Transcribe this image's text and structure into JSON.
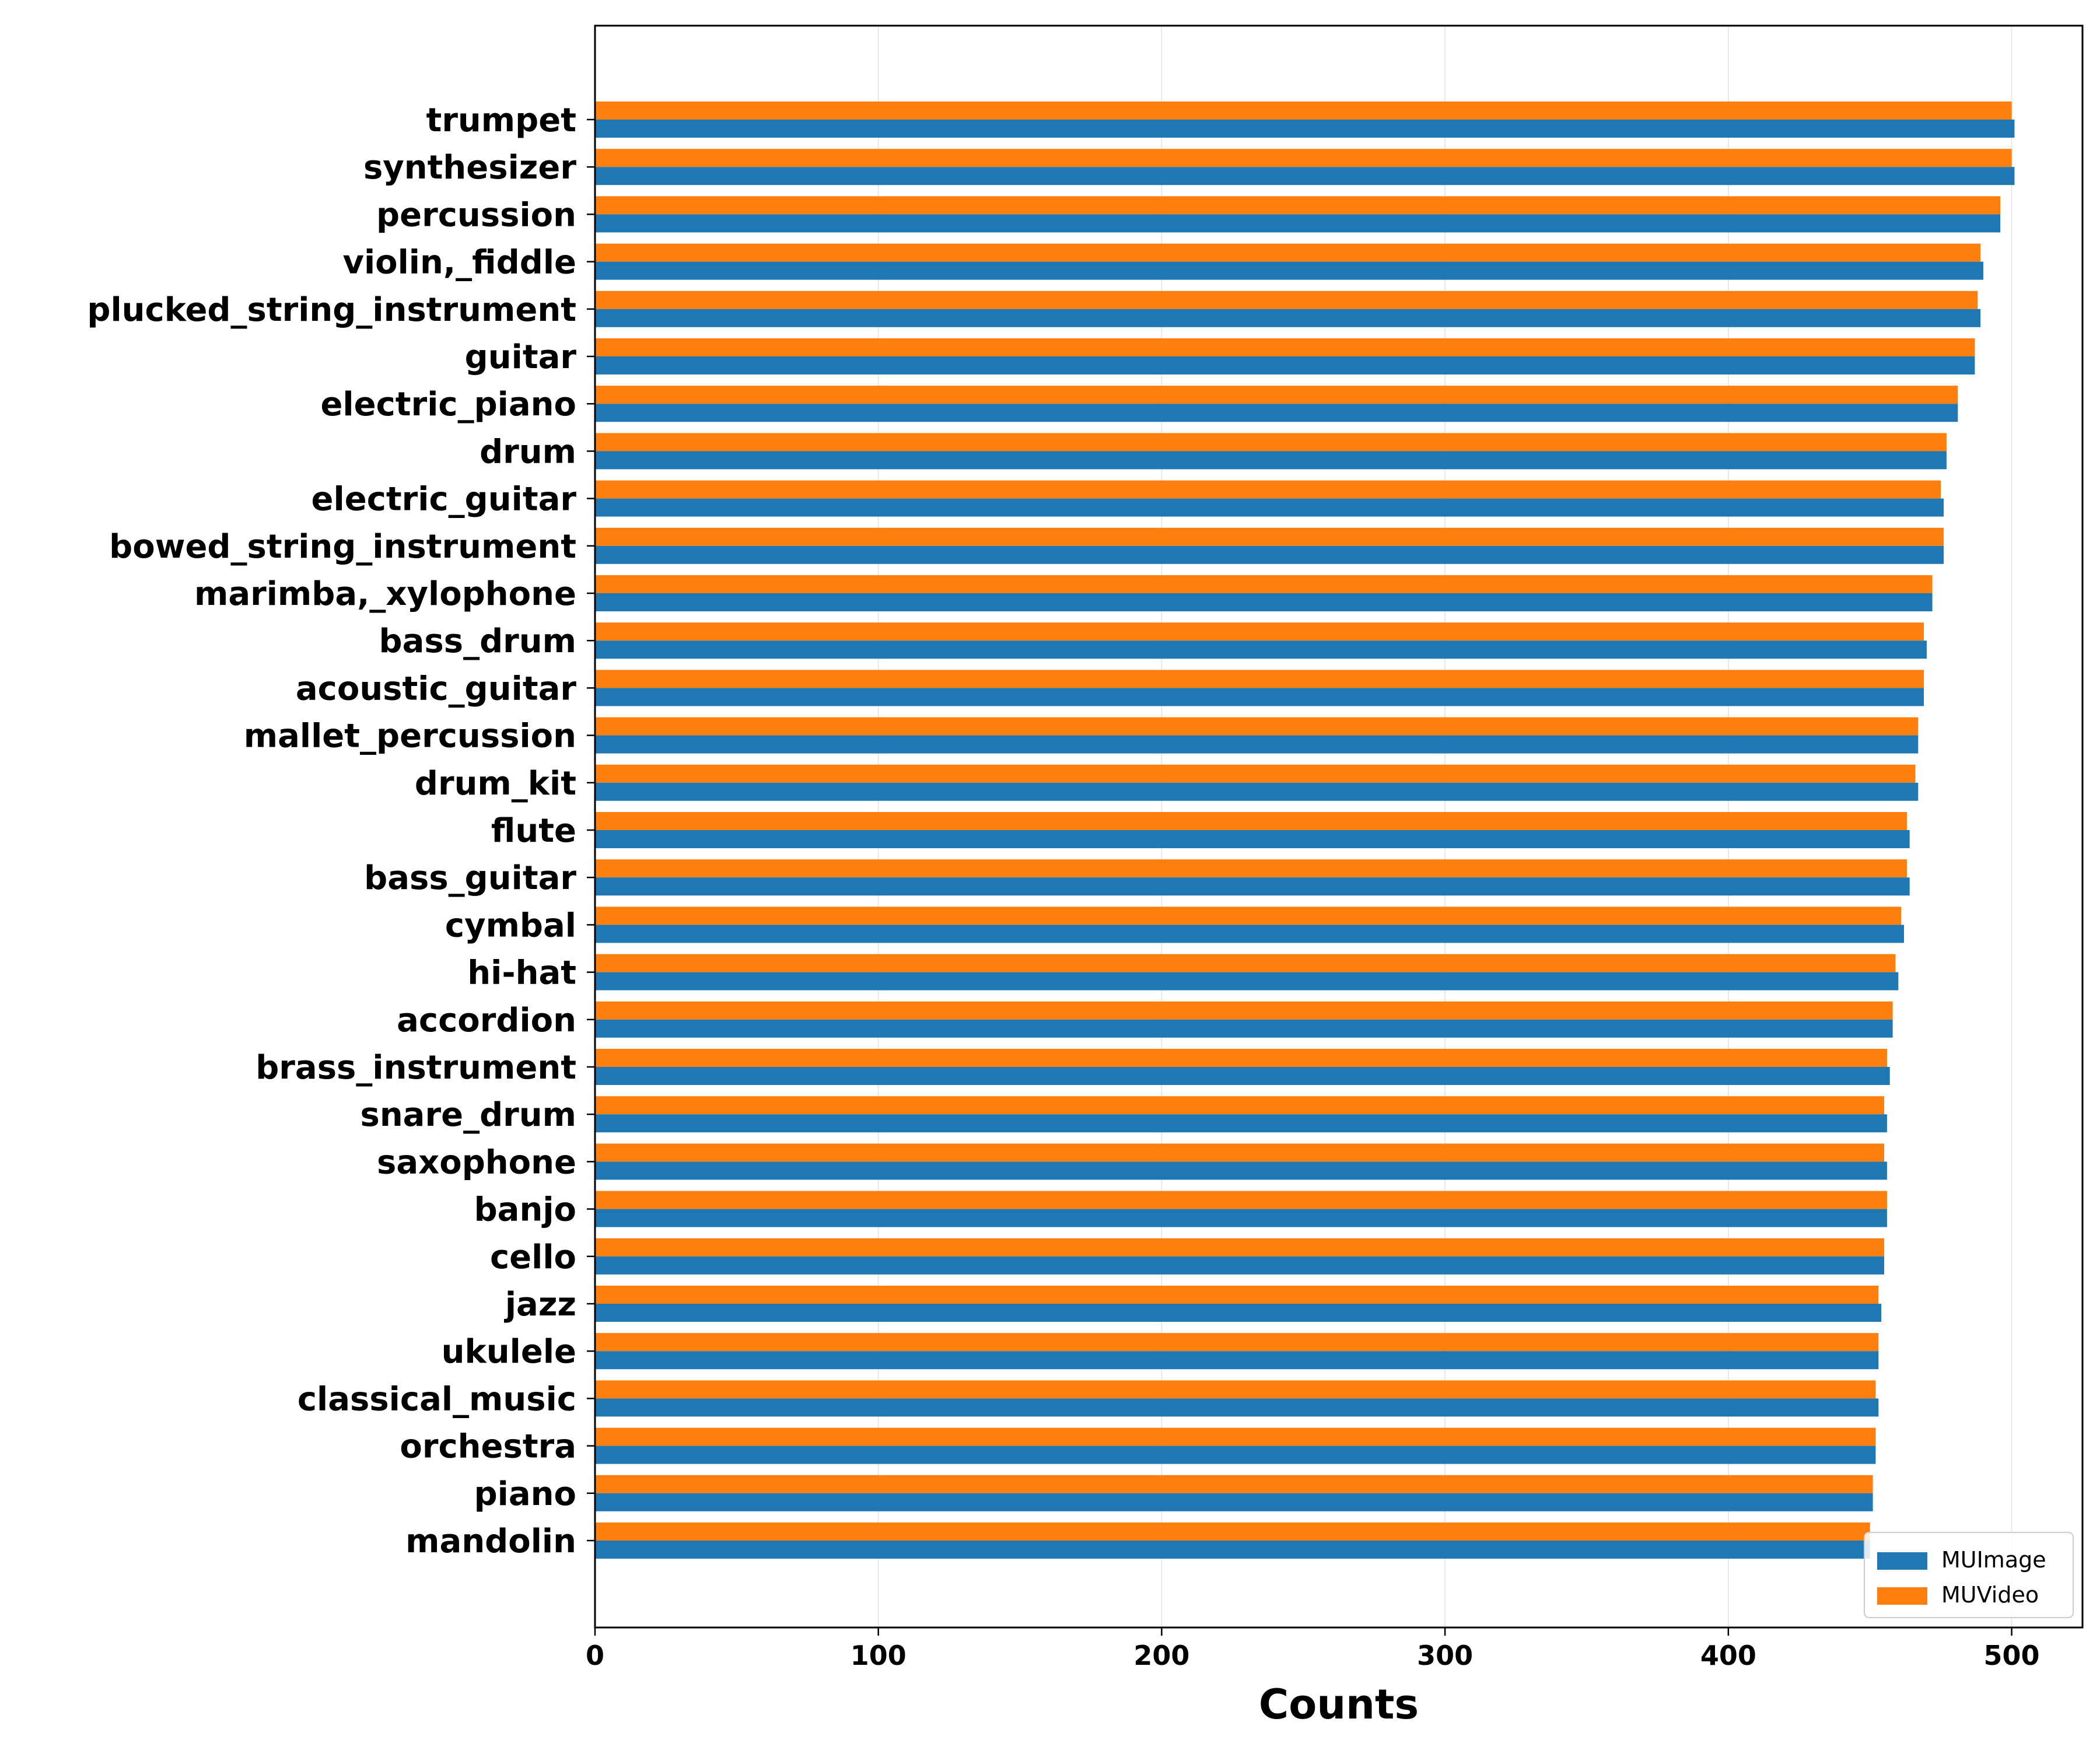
{
  "chart_data": {
    "type": "bar",
    "orientation": "horizontal",
    "title": "",
    "xlabel": "Counts",
    "ylabel": "",
    "xlim": [
      0,
      525
    ],
    "xticks": [
      0,
      100,
      200,
      300,
      400,
      500
    ],
    "grid": "vertical",
    "legend_position": "bottom-right",
    "categories": [
      "trumpet",
      "synthesizer",
      "percussion",
      "violin,_fiddle",
      "plucked_string_instrument",
      "guitar",
      "electric_piano",
      "drum",
      "electric_guitar",
      "bowed_string_instrument",
      "marimba,_xylophone",
      "bass_drum",
      "acoustic_guitar",
      "mallet_percussion",
      "drum_kit",
      "flute",
      "bass_guitar",
      "cymbal",
      "hi-hat",
      "accordion",
      "brass_instrument",
      "snare_drum",
      "saxophone",
      "banjo",
      "cello",
      "jazz",
      "ukulele",
      "classical_music",
      "orchestra",
      "piano",
      "mandolin"
    ],
    "series": [
      {
        "name": "MUImage",
        "color": "#1f77b4",
        "values": [
          501,
          501,
          496,
          490,
          489,
          487,
          481,
          477,
          476,
          476,
          472,
          470,
          469,
          467,
          467,
          464,
          464,
          462,
          460,
          458,
          457,
          456,
          456,
          456,
          455,
          454,
          453,
          453,
          452,
          451,
          450
        ]
      },
      {
        "name": "MUVideo",
        "color": "#ff7f0e",
        "values": [
          500,
          500,
          496,
          489,
          488,
          487,
          481,
          477,
          475,
          476,
          472,
          469,
          469,
          467,
          466,
          463,
          463,
          461,
          459,
          458,
          456,
          455,
          455,
          456,
          455,
          453,
          453,
          452,
          452,
          451,
          450
        ]
      }
    ]
  }
}
